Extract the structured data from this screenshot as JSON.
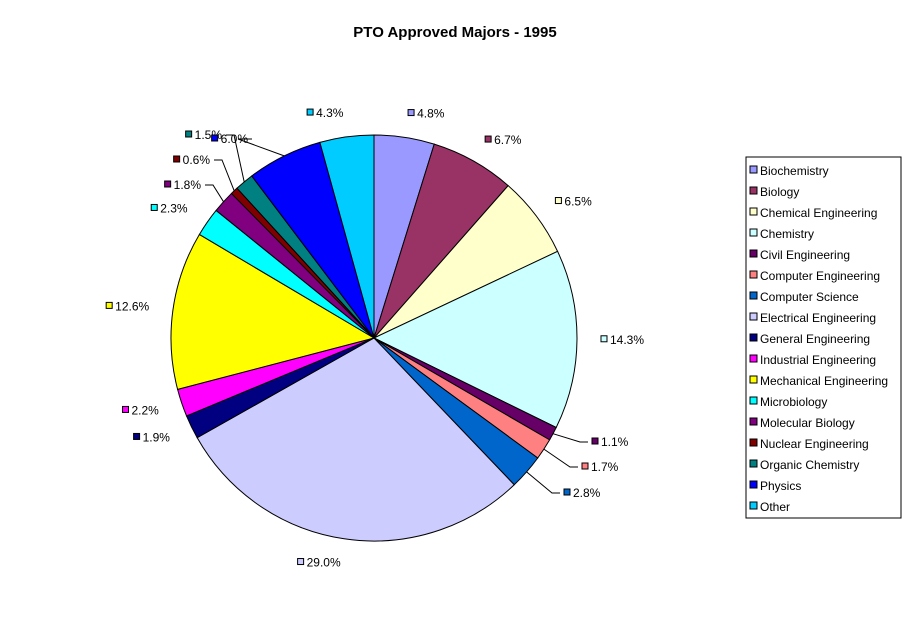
{
  "chart_data": {
    "type": "pie",
    "title": "PTO Approved Majors - 1995",
    "legend_position": "right",
    "start_angle_deg": 0,
    "direction": "clockwise",
    "slices": [
      {
        "label": "Biochemistry",
        "value": 4.8,
        "display": "4.8%",
        "color": "#9999FF"
      },
      {
        "label": "Biology",
        "value": 6.7,
        "display": "6.7%",
        "color": "#993366"
      },
      {
        "label": "Chemical Engineering",
        "value": 6.5,
        "display": "6.5%",
        "color": "#FFFFCC"
      },
      {
        "label": "Chemistry",
        "value": 14.3,
        "display": "14.3%",
        "color": "#CCFFFF"
      },
      {
        "label": "Civil Engineering",
        "value": 1.1,
        "display": "1.1%",
        "color": "#660066"
      },
      {
        "label": "Computer Engineering",
        "value": 1.7,
        "display": "1.7%",
        "color": "#FF8080"
      },
      {
        "label": "Computer Science",
        "value": 2.8,
        "display": "2.8%",
        "color": "#0066CC"
      },
      {
        "label": "Electrical Engineering",
        "value": 29.0,
        "display": "29.0%",
        "color": "#CCCCFF"
      },
      {
        "label": "General Engineering",
        "value": 1.9,
        "display": "1.9%",
        "color": "#000080"
      },
      {
        "label": "Industrial Engineering",
        "value": 2.2,
        "display": "2.2%",
        "color": "#FF00FF"
      },
      {
        "label": "Mechanical Engineering",
        "value": 12.6,
        "display": "12.6%",
        "color": "#FFFF00"
      },
      {
        "label": "Microbiology",
        "value": 2.3,
        "display": "2.3%",
        "color": "#00FFFF"
      },
      {
        "label": "Molecular Biology",
        "value": 1.8,
        "display": "1.8%",
        "color": "#800080"
      },
      {
        "label": "Nuclear Engineering",
        "value": 0.6,
        "display": "0.6%",
        "color": "#800000"
      },
      {
        "label": "Organic Chemistry",
        "value": 1.5,
        "display": "1.5%",
        "color": "#008080"
      },
      {
        "label": "Physics",
        "value": 6.0,
        "display": "6.0%",
        "color": "#0000FF"
      },
      {
        "label": "Other",
        "value": 4.3,
        "display": "4.3%",
        "color": "#00CCFF"
      }
    ]
  }
}
